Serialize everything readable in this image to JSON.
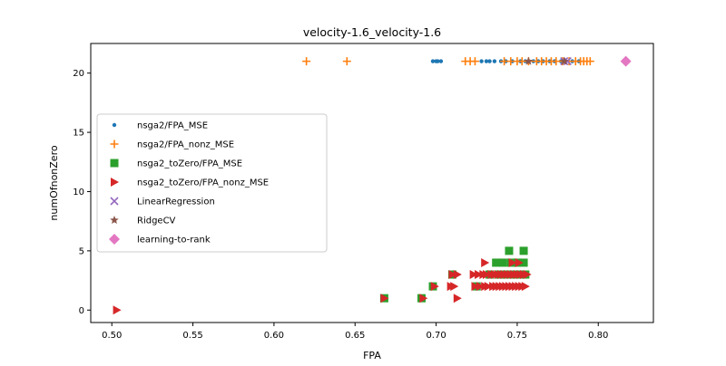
{
  "chart_data": {
    "type": "scatter",
    "title": "velocity-1.6_velocity-1.6",
    "xlabel": "FPA",
    "ylabel": "numOfnonZero",
    "xlim": [
      0.487,
      0.834
    ],
    "ylim": [
      -1.05,
      22.5
    ],
    "xticks": [
      0.5,
      0.55,
      0.6,
      0.65,
      0.7,
      0.75,
      0.8
    ],
    "xtick_labels": [
      "0.50",
      "0.55",
      "0.60",
      "0.65",
      "0.70",
      "0.75",
      "0.80"
    ],
    "yticks": [
      0,
      5,
      10,
      15,
      20
    ],
    "ytick_labels": [
      "0",
      "5",
      "10",
      "15",
      "20"
    ],
    "grid": false,
    "legend_position": "center-left",
    "series": [
      {
        "name": "nsga2/FPA_MSE",
        "marker": "circle",
        "color": "#1f77b4",
        "points": [
          [
            0.698,
            21
          ],
          [
            0.7,
            21
          ],
          [
            0.701,
            21
          ],
          [
            0.703,
            21
          ],
          [
            0.728,
            21
          ],
          [
            0.731,
            21
          ],
          [
            0.733,
            21
          ],
          [
            0.736,
            21
          ],
          [
            0.74,
            21
          ],
          [
            0.743,
            21
          ],
          [
            0.747,
            21
          ],
          [
            0.752,
            21
          ],
          [
            0.755,
            21
          ],
          [
            0.76,
            21
          ],
          [
            0.763,
            21
          ],
          [
            0.766,
            21
          ],
          [
            0.77,
            21
          ],
          [
            0.773,
            21
          ],
          [
            0.777,
            21
          ],
          [
            0.78,
            21
          ],
          [
            0.784,
            21
          ],
          [
            0.788,
            21
          ]
        ]
      },
      {
        "name": "nsga2/FPA_nonz_MSE",
        "marker": "plus",
        "color": "#ff7f0e",
        "points": [
          [
            0.62,
            21
          ],
          [
            0.645,
            21
          ],
          [
            0.718,
            21
          ],
          [
            0.721,
            21
          ],
          [
            0.724,
            21
          ],
          [
            0.742,
            21
          ],
          [
            0.746,
            21
          ],
          [
            0.75,
            21
          ],
          [
            0.753,
            21
          ],
          [
            0.757,
            21
          ],
          [
            0.762,
            21
          ],
          [
            0.765,
            21
          ],
          [
            0.768,
            21
          ],
          [
            0.771,
            21
          ],
          [
            0.774,
            21
          ],
          [
            0.778,
            21
          ],
          [
            0.782,
            21
          ],
          [
            0.786,
            21
          ],
          [
            0.789,
            21
          ],
          [
            0.791,
            21
          ],
          [
            0.793,
            21
          ],
          [
            0.795,
            21
          ]
        ]
      },
      {
        "name": "nsga2_toZero/FPA_MSE",
        "marker": "square",
        "color": "#2ca02c",
        "points": [
          [
            0.668,
            1
          ],
          [
            0.691,
            1
          ],
          [
            0.698,
            2
          ],
          [
            0.71,
            3
          ],
          [
            0.725,
            2
          ],
          [
            0.733,
            3
          ],
          [
            0.737,
            4
          ],
          [
            0.739,
            3
          ],
          [
            0.741,
            4
          ],
          [
            0.743,
            3
          ],
          [
            0.745,
            5
          ],
          [
            0.746,
            4
          ],
          [
            0.748,
            3
          ],
          [
            0.75,
            4
          ],
          [
            0.752,
            3
          ],
          [
            0.754,
            5
          ],
          [
            0.754,
            4
          ],
          [
            0.755,
            3
          ]
        ]
      },
      {
        "name": "nsga2_toZero/FPA_nonz_MSE",
        "marker": "triangle-right",
        "color": "#d62728",
        "points": [
          [
            0.503,
            0
          ],
          [
            0.668,
            1
          ],
          [
            0.692,
            1
          ],
          [
            0.699,
            2
          ],
          [
            0.709,
            2
          ],
          [
            0.71,
            3
          ],
          [
            0.711,
            2
          ],
          [
            0.713,
            3
          ],
          [
            0.713,
            1
          ],
          [
            0.723,
            3
          ],
          [
            0.724,
            2
          ],
          [
            0.726,
            3
          ],
          [
            0.727,
            2
          ],
          [
            0.729,
            3
          ],
          [
            0.73,
            2
          ],
          [
            0.73,
            4
          ],
          [
            0.731,
            3
          ],
          [
            0.732,
            2
          ],
          [
            0.734,
            3
          ],
          [
            0.735,
            2
          ],
          [
            0.736,
            3
          ],
          [
            0.737,
            2
          ],
          [
            0.738,
            3
          ],
          [
            0.739,
            2
          ],
          [
            0.74,
            3
          ],
          [
            0.741,
            2
          ],
          [
            0.742,
            3
          ],
          [
            0.743,
            2
          ],
          [
            0.744,
            3
          ],
          [
            0.745,
            2
          ],
          [
            0.746,
            3
          ],
          [
            0.747,
            4
          ],
          [
            0.747,
            2
          ],
          [
            0.748,
            3
          ],
          [
            0.749,
            2
          ],
          [
            0.75,
            3
          ],
          [
            0.751,
            4
          ],
          [
            0.751,
            2
          ],
          [
            0.752,
            3
          ],
          [
            0.753,
            2
          ],
          [
            0.754,
            3
          ],
          [
            0.755,
            2
          ],
          [
            0.756,
            3
          ]
        ]
      },
      {
        "name": "LinearRegression",
        "marker": "x",
        "color": "#9467bd",
        "points": [
          [
            0.779,
            21
          ],
          [
            0.781,
            21
          ]
        ]
      },
      {
        "name": "RidgeCV",
        "marker": "star",
        "color": "#8c564b",
        "points": [
          [
            0.757,
            21
          ],
          [
            0.779,
            21
          ]
        ]
      },
      {
        "name": "learning-to-rank",
        "marker": "diamond",
        "color": "#e377c2",
        "points": [
          [
            0.817,
            21
          ]
        ]
      }
    ]
  }
}
